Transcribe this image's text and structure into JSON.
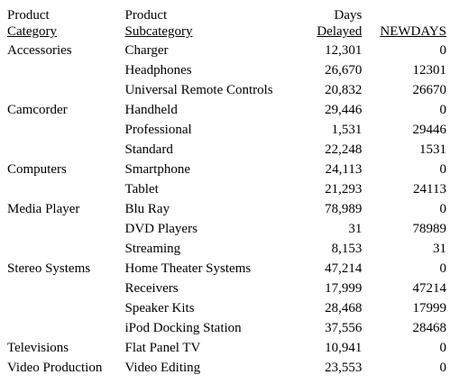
{
  "headers": {
    "category": {
      "line1": "Product",
      "line2": "Category"
    },
    "subcategory": {
      "line1": "Product",
      "line2": "Subcategory"
    },
    "days": {
      "line1": "Days",
      "line2": "Delayed"
    },
    "newdays": {
      "line1": "",
      "line2": "NEWDAYS"
    }
  },
  "rows": [
    {
      "category": "Accessories",
      "subcategory": "Charger",
      "days": "12,301",
      "newdays": "0"
    },
    {
      "category": "",
      "subcategory": "Headphones",
      "days": "26,670",
      "newdays": "12301"
    },
    {
      "category": "",
      "subcategory": "Universal Remote Controls",
      "days": "20,832",
      "newdays": "26670"
    },
    {
      "category": "Camcorder",
      "subcategory": "Handheld",
      "days": "29,446",
      "newdays": "0"
    },
    {
      "category": "",
      "subcategory": "Professional",
      "days": "1,531",
      "newdays": "29446"
    },
    {
      "category": "",
      "subcategory": "Standard",
      "days": "22,248",
      "newdays": "1531"
    },
    {
      "category": "Computers",
      "subcategory": "Smartphone",
      "days": "24,113",
      "newdays": "0"
    },
    {
      "category": "",
      "subcategory": "Tablet",
      "days": "21,293",
      "newdays": "24113"
    },
    {
      "category": "Media Player",
      "subcategory": "Blu Ray",
      "days": "78,989",
      "newdays": "0"
    },
    {
      "category": "",
      "subcategory": "DVD Players",
      "days": "31",
      "newdays": "78989"
    },
    {
      "category": "",
      "subcategory": "Streaming",
      "days": "8,153",
      "newdays": "31"
    },
    {
      "category": "Stereo Systems",
      "subcategory": "Home Theater Systems",
      "days": "47,214",
      "newdays": "0"
    },
    {
      "category": "",
      "subcategory": "Receivers",
      "days": "17,999",
      "newdays": "47214"
    },
    {
      "category": "",
      "subcategory": "Speaker Kits",
      "days": "28,468",
      "newdays": "17999"
    },
    {
      "category": "",
      "subcategory": "iPod Docking Station",
      "days": "37,556",
      "newdays": "28468"
    },
    {
      "category": "Televisions",
      "subcategory": "Flat Panel TV",
      "days": "10,941",
      "newdays": "0"
    },
    {
      "category": "Video Production",
      "subcategory": "Video Editing",
      "days": "23,553",
      "newdays": "0"
    }
  ]
}
